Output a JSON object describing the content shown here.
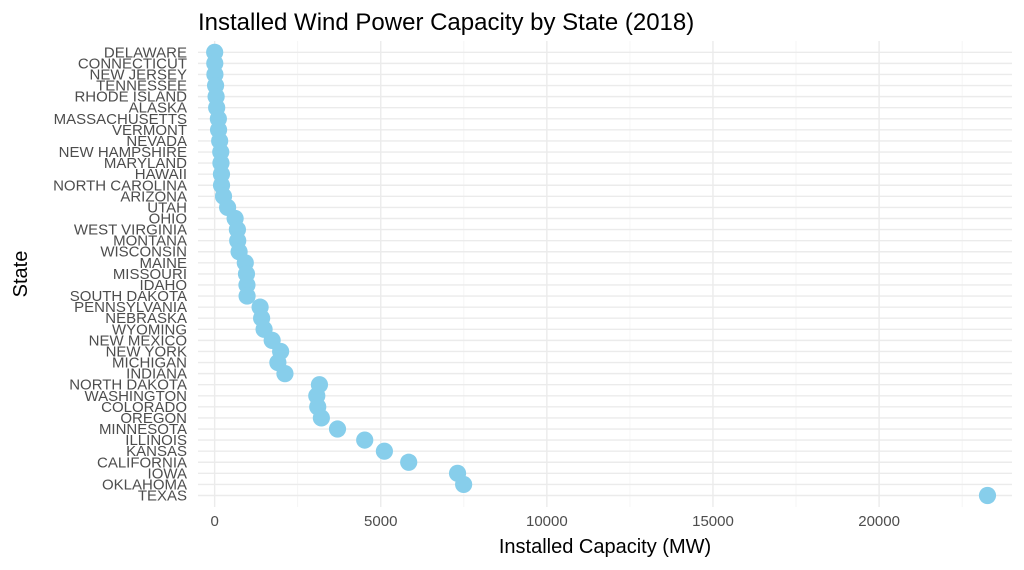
{
  "chart_data": {
    "type": "scatter",
    "title": "Installed Wind Power Capacity by State (2018)",
    "xlabel": "Installed Capacity (MW)",
    "ylabel": "State",
    "xlim": [
      -500,
      24000
    ],
    "x_ticks": [
      0,
      5000,
      10000,
      15000,
      20000
    ],
    "x_tick_labels": [
      "0",
      "5000",
      "10000",
      "15000",
      "20000"
    ],
    "grid": true,
    "point_color": "#87ceeb",
    "categories": [
      "DELAWARE",
      "CONNECTICUT",
      "NEW JERSEY",
      "TENNESSEE",
      "RHODE ISLAND",
      "ALASKA",
      "MASSACHUSETTS",
      "VERMONT",
      "NEVADA",
      "NEW HAMPSHIRE",
      "MARYLAND",
      "HAWAII",
      "NORTH CAROLINA",
      "ARIZONA",
      "UTAH",
      "OHIO",
      "WEST VIRGINIA",
      "MONTANA",
      "WISCONSIN",
      "MAINE",
      "MISSOURI",
      "IDAHO",
      "SOUTH DAKOTA",
      "PENNSYLVANIA",
      "NEBRASKA",
      "WYOMING",
      "NEW MEXICO",
      "NEW YORK",
      "MICHIGAN",
      "INDIANA",
      "NORTH DAKOTA",
      "WASHINGTON",
      "COLORADO",
      "OREGON",
      "MINNESOTA",
      "ILLINOIS",
      "KANSAS",
      "CALIFORNIA",
      "IOWA",
      "OKLAHOMA",
      "TEXAS"
    ],
    "values": [
      2,
      5,
      9,
      29,
      45,
      62,
      113,
      119,
      152,
      185,
      191,
      206,
      208,
      268,
      391,
      617,
      686,
      695,
      737,
      923,
      959,
      973,
      977,
      1369,
      1415,
      1489,
      1732,
      1987,
      1904,
      2117,
      3155,
      3075,
      3104,
      3213,
      3699,
      4518,
      5110,
      5842,
      7312,
      7495,
      23262
    ]
  }
}
